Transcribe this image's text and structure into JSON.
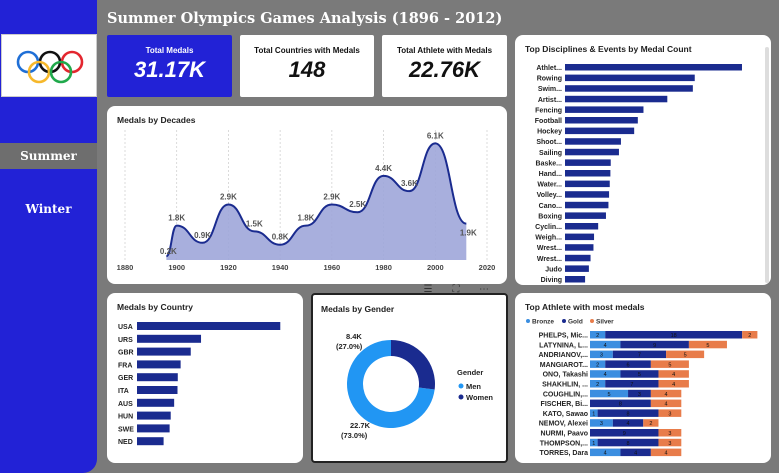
{
  "title": "Summer Olympics Games Analysis (1896 - 2012)",
  "nav": {
    "summer": "Summer",
    "winter": "Winter"
  },
  "kpis": {
    "total_medals": {
      "label": "Total Medals",
      "value": "31.17K"
    },
    "total_countries": {
      "label": "Total Countries with Medals",
      "value": "148"
    },
    "total_athletes": {
      "label": "Total Athlete with Medals",
      "value": "22.76K"
    }
  },
  "colors": {
    "sidebar": "#2222d6",
    "bar": "#1a2b8f",
    "area_fill": "#9ea6d9",
    "line": "#1a2b8f",
    "bronze": "#3b8ee0",
    "gold": "#1a2b8f",
    "silver": "#e87c4a",
    "men": "#2196f3",
    "women": "#1a2b8f"
  },
  "icons": {
    "logo": "olympic-rings-logo",
    "toolbar": [
      "filter-icon",
      "focus-mode-icon",
      "more-options-icon"
    ]
  },
  "chart_data": [
    {
      "id": "disciplines",
      "type": "bar",
      "orientation": "horizontal",
      "title": "Top Disciplines & Events by Medal Count",
      "categories": [
        "Athlet...",
        "Rowing",
        "Swim...",
        "Artist...",
        "Fencing",
        "Football",
        "Hockey",
        "Shoot...",
        "Sailing",
        "Baske...",
        "Hand...",
        "Water...",
        "Volley...",
        "Cano...",
        "Boxing",
        "Cyclin...",
        "Weigh...",
        "Wrest...",
        "Wrest...",
        "Judo",
        "Diving"
      ],
      "values": [
        3638,
        2667,
        2628,
        2103,
        1613,
        1497,
        1422,
        1150,
        1109,
        940,
        933,
        920,
        906,
        893,
        842,
        682,
        597,
        585,
        525,
        491,
        413
      ],
      "xlim": [
        0,
        3700
      ],
      "legend": "none"
    },
    {
      "id": "decades",
      "type": "area",
      "title": "Medals by Decades",
      "x": [
        1896,
        1900,
        1910,
        1920,
        1930,
        1940,
        1950,
        1960,
        1970,
        1980,
        1990,
        2000,
        2012
      ],
      "y": [
        200,
        1800,
        900,
        2900,
        1500,
        800,
        1800,
        2900,
        2500,
        4400,
        3600,
        6100,
        1900
      ],
      "point_labels": [
        "0.2K",
        "1.8K",
        "0.9K",
        "2.9K",
        "1.5K",
        "0.8K",
        "1.8K",
        "2.9K",
        "2.5K",
        "4.4K",
        "3.6K",
        "6.1K",
        "1.9K"
      ],
      "x_ticks": [
        "1880",
        "1900",
        "1920",
        "1940",
        "1960",
        "1980",
        "2000",
        "2020"
      ],
      "xlim": [
        1880,
        2020
      ],
      "ylim": [
        0,
        6800
      ],
      "grid": true,
      "legend": "none"
    },
    {
      "id": "country",
      "type": "bar",
      "orientation": "horizontal",
      "title": "Medals by Country",
      "categories": [
        "USA",
        "URS",
        "GBR",
        "FRA",
        "GER",
        "ITA",
        "AUS",
        "HUN",
        "SWE",
        "NED"
      ],
      "values": [
        4585,
        2049,
        1720,
        1396,
        1305,
        1296,
        1189,
        1079,
        1044,
        851
      ],
      "xlim": [
        0,
        4800
      ],
      "legend": "none"
    },
    {
      "id": "gender",
      "type": "pie",
      "title": "Medals by Gender",
      "labels": [
        "Men",
        "Women"
      ],
      "values": [
        22.7,
        8.4
      ],
      "value_labels": [
        "22.7K",
        "8.4K"
      ],
      "percent_labels": [
        "(73.0%)",
        "(27.0%)"
      ],
      "legend_title": "Gender",
      "legend": "right"
    },
    {
      "id": "athletes",
      "type": "bar",
      "orientation": "horizontal",
      "stacked": true,
      "title": "Top Athlete with most medals",
      "series_names": [
        "Bronze",
        "Gold",
        "Silver"
      ],
      "legend": "top-left",
      "categories": [
        "PHELPS, Mic...",
        "LATYNINA, L...",
        "ANDRIANOV,...",
        "MANGIAROT...",
        "ONO, Takashi",
        "SHAKHLIN, ...",
        "COUGHLIN,...",
        "FISCHER, Bi...",
        "KATO, Sawao",
        "NEMOV, Alexei",
        "NURMI, Paavo",
        "THOMPSON,...",
        "TORRES, Dara"
      ],
      "series": [
        {
          "name": "Bronze",
          "values": [
            2,
            4,
            3,
            2,
            4,
            2,
            5,
            0,
            1,
            3,
            0,
            1,
            4
          ]
        },
        {
          "name": "Gold",
          "values": [
            18,
            9,
            7,
            6,
            5,
            7,
            3,
            8,
            8,
            4,
            9,
            8,
            4
          ]
        },
        {
          "name": "Silver",
          "values": [
            2,
            5,
            5,
            5,
            4,
            4,
            4,
            4,
            3,
            2,
            3,
            3,
            4
          ]
        }
      ],
      "xlim": [
        0,
        23
      ]
    }
  ]
}
